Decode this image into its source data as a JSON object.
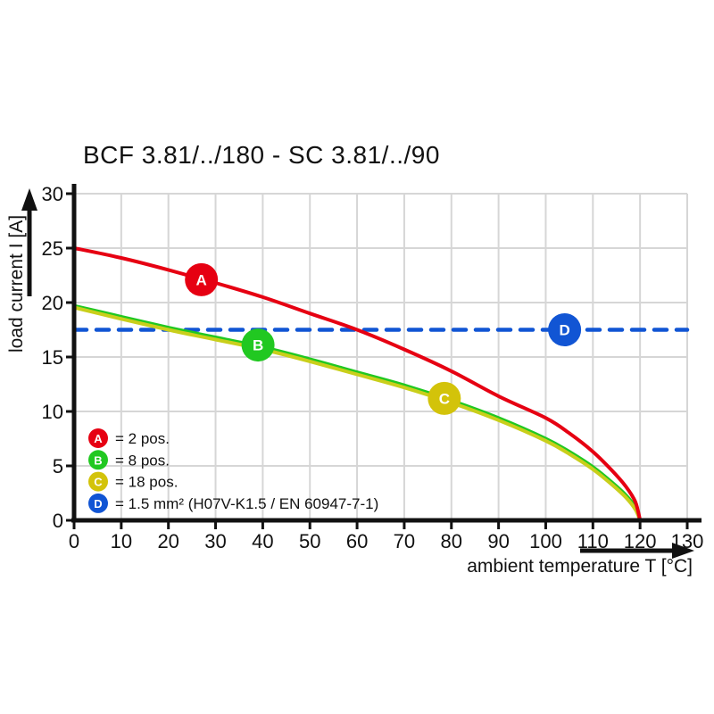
{
  "title": "BCF 3.81/../180 - SC 3.81/../90",
  "colors": {
    "axis": "#111111",
    "grid": "#d6d6d6",
    "text": "#111111",
    "background": "#ffffff"
  },
  "legend": {
    "items": [
      {
        "key": "A",
        "color": "#e60012",
        "label": "= 2 pos."
      },
      {
        "key": "B",
        "color": "#21c821",
        "label": "= 8 pos."
      },
      {
        "key": "C",
        "color": "#d3c30a",
        "label": "= 18 pos."
      },
      {
        "key": "D",
        "color": "#1155d4",
        "label": "= 1.5 mm² (H07V-K1.5 / EN 60947-7-1)"
      }
    ]
  },
  "chart_data": {
    "type": "line",
    "title": "BCF 3.81/../180 - SC 3.81/../90",
    "xlabel": "ambient temperature T [°C]",
    "ylabel": "load current I [A]",
    "xlim": [
      0,
      130
    ],
    "ylim": [
      0,
      30
    ],
    "x_ticks": [
      0,
      10,
      20,
      30,
      40,
      50,
      60,
      70,
      80,
      90,
      100,
      110,
      120,
      130
    ],
    "y_ticks": [
      0,
      5,
      10,
      15,
      20,
      25,
      30
    ],
    "grid": true,
    "legend_position": "lower-left",
    "series": [
      {
        "key": "D",
        "name": "1.5 mm² (H07V-K1.5 / EN 60947-7-1)",
        "color": "#1155d4",
        "dash": [
          14,
          11
        ],
        "points": [
          [
            0,
            17.5
          ],
          [
            130,
            17.5
          ]
        ]
      },
      {
        "key": "B",
        "name": "8 pos.",
        "color": "#21c821",
        "dash": null,
        "points": [
          [
            0,
            19.7
          ],
          [
            10,
            18.7
          ],
          [
            20,
            17.7
          ],
          [
            30,
            16.8
          ],
          [
            40,
            15.9
          ],
          [
            50,
            14.8
          ],
          [
            60,
            13.6
          ],
          [
            70,
            12.4
          ],
          [
            80,
            11.0
          ],
          [
            90,
            9.4
          ],
          [
            100,
            7.5
          ],
          [
            105,
            6.3
          ],
          [
            110,
            4.9
          ],
          [
            114,
            3.5
          ],
          [
            117,
            2.3
          ],
          [
            119,
            1.2
          ],
          [
            120,
            0
          ]
        ]
      },
      {
        "key": "C",
        "name": "18 pos.",
        "color": "#c9cf1b",
        "dash": null,
        "points": [
          [
            0,
            19.55
          ],
          [
            10,
            18.5
          ],
          [
            20,
            17.5
          ],
          [
            30,
            16.6
          ],
          [
            40,
            15.7
          ],
          [
            50,
            14.6
          ],
          [
            60,
            13.4
          ],
          [
            70,
            12.2
          ],
          [
            80,
            10.8
          ],
          [
            90,
            9.2
          ],
          [
            100,
            7.3
          ],
          [
            105,
            6.1
          ],
          [
            110,
            4.7
          ],
          [
            114,
            3.3
          ],
          [
            117,
            2.1
          ],
          [
            119,
            1.0
          ],
          [
            120,
            0
          ]
        ]
      },
      {
        "key": "A",
        "name": "2 pos.",
        "color": "#e60012",
        "dash": null,
        "points": [
          [
            0,
            25
          ],
          [
            10,
            24.1
          ],
          [
            20,
            23.0
          ],
          [
            30,
            21.8
          ],
          [
            40,
            20.5
          ],
          [
            50,
            19.0
          ],
          [
            60,
            17.5
          ],
          [
            70,
            15.7
          ],
          [
            80,
            13.7
          ],
          [
            90,
            11.4
          ],
          [
            100,
            9.4
          ],
          [
            105,
            8.0
          ],
          [
            110,
            6.3
          ],
          [
            114,
            4.6
          ],
          [
            117,
            3.1
          ],
          [
            119,
            1.7
          ],
          [
            120,
            0
          ]
        ]
      }
    ],
    "markers": [
      {
        "key": "A",
        "x": 27,
        "y": 22.1,
        "color": "#e60012"
      },
      {
        "key": "B",
        "x": 39,
        "y": 16.1,
        "color": "#21c821"
      },
      {
        "key": "C",
        "x": 78.5,
        "y": 11.2,
        "color": "#d3c30a"
      },
      {
        "key": "D",
        "x": 104,
        "y": 17.5,
        "color": "#1155d4"
      }
    ]
  }
}
